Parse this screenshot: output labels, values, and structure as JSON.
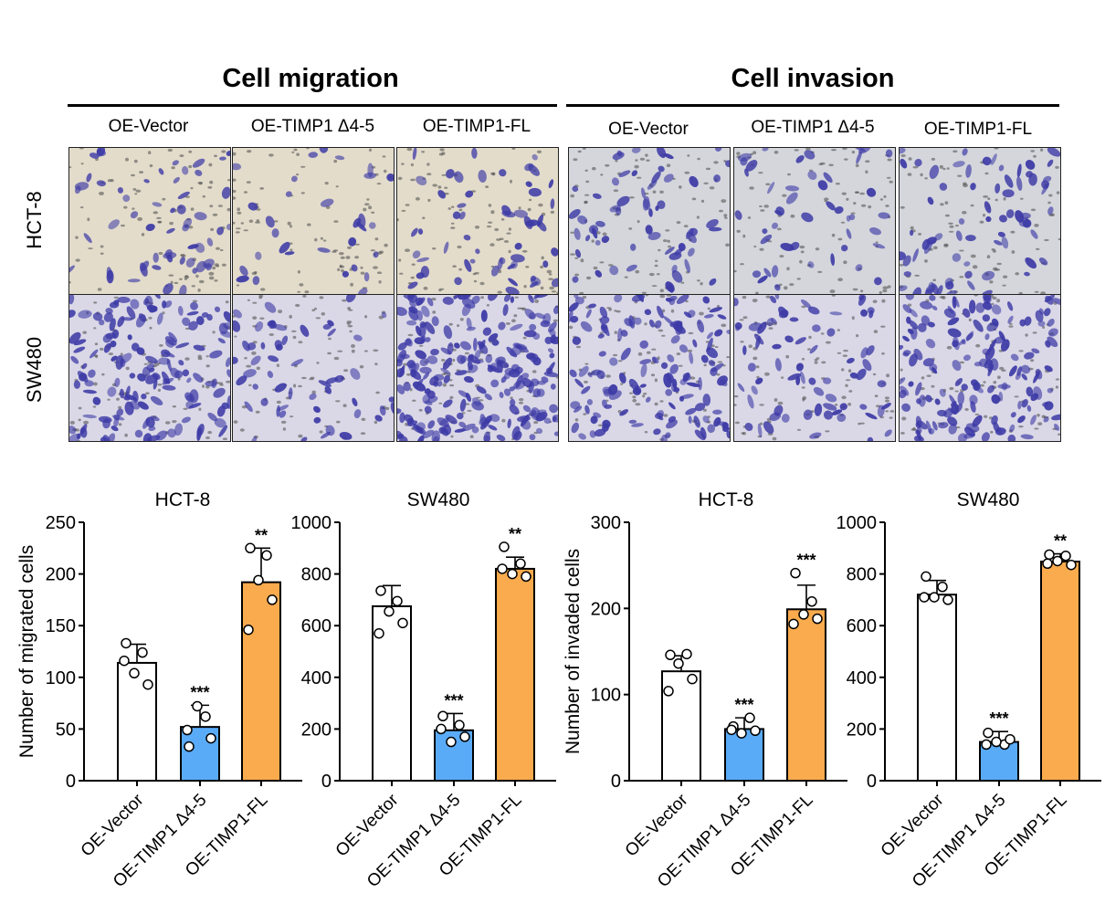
{
  "panel_groups": [
    {
      "title": "Cell migration",
      "columns": [
        "OE-Vector",
        "OE-TIMP1 Δ4-5",
        "OE-TIMP1-FL"
      ]
    },
    {
      "title": "Cell invasion",
      "columns": [
        "OE-Vector",
        "OE-TIMP1 Δ4-5",
        "OE-TIMP1-FL"
      ]
    }
  ],
  "rows": [
    "HCT-8",
    "SW480"
  ],
  "colors": {
    "vector": "#ffffff",
    "delta": "#5aabf7",
    "fl": "#f9ab4d",
    "stain": "#3d3aa6",
    "hct_bg": "#e3dccb",
    "sw_bg": "#dad8e6",
    "inv_bg": "#d4d6dc"
  },
  "chart_data": [
    {
      "type": "bar",
      "title": "HCT-8",
      "ylabel": "Number of  migrated cells",
      "categories": [
        "OE-Vector",
        "OE-TIMP1 Δ4-5",
        "OE-TIMP1-FL"
      ],
      "values": [
        114,
        52,
        192
      ],
      "errors": [
        18,
        21,
        33
      ],
      "points": [
        [
          133,
          124,
          104,
          93,
          116
        ],
        [
          33,
          62,
          72,
          41,
          49
        ],
        [
          225,
          218,
          194,
          175,
          146
        ]
      ],
      "significance": [
        "",
        "***",
        "**"
      ],
      "ylim": [
        0,
        250
      ],
      "yticks": [
        0,
        50,
        100,
        150,
        200,
        250
      ]
    },
    {
      "type": "bar",
      "title": "SW480",
      "ylabel": "",
      "categories": [
        "OE-Vector",
        "OE-TIMP1 Δ4-5",
        "OE-TIMP1-FL"
      ],
      "values": [
        675,
        195,
        820
      ],
      "errors": [
        80,
        65,
        45
      ],
      "points": [
        [
          735,
          695,
          655,
          610,
          570
        ],
        [
          250,
          215,
          150,
          170,
          200
        ],
        [
          905,
          840,
          800,
          790,
          820
        ]
      ],
      "significance": [
        "",
        "***",
        "**"
      ],
      "ylim": [
        0,
        1000
      ],
      "yticks": [
        0,
        200,
        400,
        600,
        800,
        1000
      ]
    },
    {
      "type": "bar",
      "title": "HCT-8",
      "ylabel": "Number of invaded cells",
      "categories": [
        "OE-Vector",
        "OE-TIMP1 Δ4-5",
        "OE-TIMP1-FL"
      ],
      "values": [
        127,
        60,
        199
      ],
      "errors": [
        18,
        13,
        28
      ],
      "points": [
        [
          146,
          147,
          136,
          118,
          104
        ],
        [
          63,
          73,
          55,
          58,
          59
        ],
        [
          241,
          208,
          193,
          188,
          182
        ]
      ],
      "significance": [
        "",
        "***",
        "***"
      ],
      "ylim": [
        0,
        300
      ],
      "yticks": [
        0,
        100,
        200,
        300
      ]
    },
    {
      "type": "bar",
      "title": "SW480",
      "ylabel": "",
      "categories": [
        "OE-Vector",
        "OE-TIMP1 Δ4-5",
        "OE-TIMP1-FL"
      ],
      "values": [
        720,
        150,
        848
      ],
      "errors": [
        55,
        40,
        30
      ],
      "points": [
        [
          790,
          750,
          710,
          700,
          710
        ],
        [
          185,
          140,
          150,
          160,
          140
        ],
        [
          875,
          870,
          850,
          835,
          840
        ]
      ],
      "significance": [
        "",
        "***",
        "**"
      ],
      "ylim": [
        0,
        1000
      ],
      "yticks": [
        0,
        200,
        400,
        600,
        800,
        1000
      ]
    }
  ]
}
